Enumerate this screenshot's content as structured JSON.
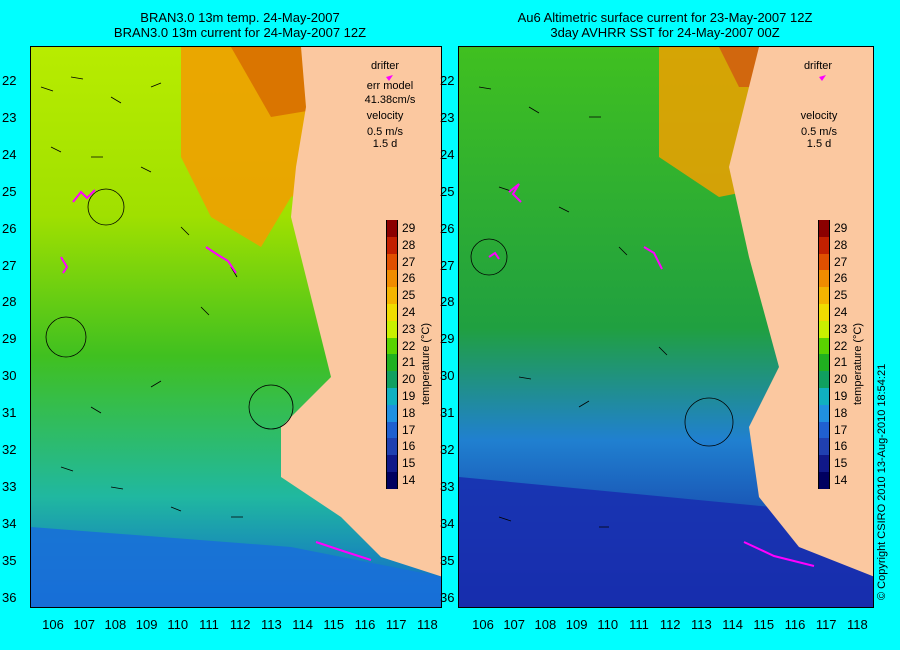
{
  "left_panel": {
    "title_line1": "BRAN3.0 13m temp. 24-May-2007",
    "title_line2": "BRAN3.0 13m current for 24-May-2007 12Z",
    "legend": {
      "drifter": "drifter",
      "err_model": "err model",
      "err_value": "41.38cm/s",
      "velocity": "velocity",
      "speed": "0.5 m/s",
      "duration": "1.5 d"
    }
  },
  "right_panel": {
    "title_line1": "Au6 Altimetric surface current for 23-May-2007 12Z",
    "title_line2": "3day AVHRR SST for 24-May-2007 00Z",
    "legend": {
      "drifter": "drifter",
      "velocity": "velocity",
      "speed": "0.5 m/s",
      "duration": "1.5 d"
    }
  },
  "lat_labels": [
    "22",
    "23",
    "24",
    "25",
    "26",
    "27",
    "28",
    "29",
    "30",
    "31",
    "32",
    "33",
    "34",
    "35",
    "36"
  ],
  "lon_labels": [
    "106",
    "107",
    "108",
    "109",
    "110",
    "111",
    "112",
    "113",
    "114",
    "115",
    "116",
    "117",
    "118"
  ],
  "colorbar": {
    "label": "temperature (°C)",
    "ticks": [
      "29",
      "28",
      "27",
      "26",
      "25",
      "24",
      "23",
      "22",
      "21",
      "20",
      "19",
      "18",
      "17",
      "16",
      "15",
      "14"
    ],
    "colors": [
      "#8b0000",
      "#c22000",
      "#e05000",
      "#f08c00",
      "#f4b400",
      "#f0dc00",
      "#c8f000",
      "#5ad200",
      "#20b020",
      "#10a060",
      "#10b0c0",
      "#2090e0",
      "#2060d0",
      "#2040b0",
      "#101888",
      "#000060"
    ]
  },
  "copyright": "© Copyright CSIRO 2010  13-Aug-2010 18:54:21"
}
